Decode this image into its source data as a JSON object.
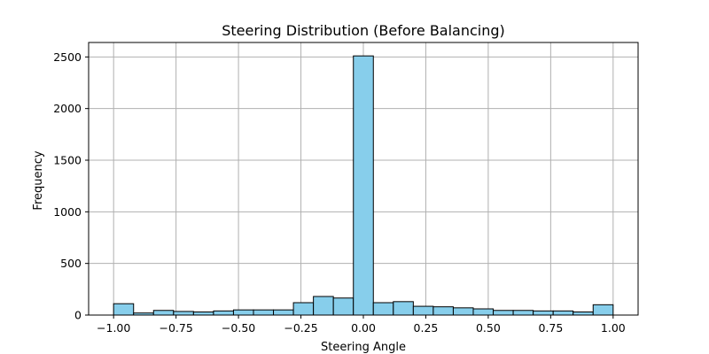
{
  "chart_data": {
    "type": "bar",
    "title": "Steering Distribution (Before Balancing)",
    "xlabel": "Steering Angle",
    "ylabel": "Frequency",
    "xlim": [
      -1.1,
      1.1
    ],
    "ylim": [
      0,
      2640
    ],
    "grid": true,
    "bar_color": "#87ceeb",
    "edge_color": "#000000",
    "grid_color": "#b0b0b0",
    "bin_edges": [
      -1.0,
      -0.92,
      -0.84,
      -0.76,
      -0.68,
      -0.6,
      -0.52,
      -0.44,
      -0.36,
      -0.28,
      -0.2,
      -0.12,
      -0.04,
      0.04,
      0.12,
      0.2,
      0.28,
      0.36,
      0.44,
      0.52,
      0.6,
      0.68,
      0.76,
      0.84,
      0.92,
      1.0
    ],
    "values": [
      110,
      20,
      45,
      35,
      30,
      40,
      50,
      50,
      50,
      120,
      180,
      165,
      2510,
      120,
      130,
      85,
      80,
      70,
      60,
      45,
      45,
      40,
      40,
      30,
      100
    ],
    "x_ticks": [
      {
        "value": -1.0,
        "label": "−1.00"
      },
      {
        "value": -0.75,
        "label": "−0.75"
      },
      {
        "value": -0.5,
        "label": "−0.50"
      },
      {
        "value": -0.25,
        "label": "−0.25"
      },
      {
        "value": 0.0,
        "label": "0.00"
      },
      {
        "value": 0.25,
        "label": "0.25"
      },
      {
        "value": 0.5,
        "label": "0.50"
      },
      {
        "value": 0.75,
        "label": "0.75"
      },
      {
        "value": 1.0,
        "label": "1.00"
      }
    ],
    "y_ticks": [
      {
        "value": 0,
        "label": "0"
      },
      {
        "value": 500,
        "label": "500"
      },
      {
        "value": 1000,
        "label": "1000"
      },
      {
        "value": 1500,
        "label": "1500"
      },
      {
        "value": 2000,
        "label": "2000"
      },
      {
        "value": 2500,
        "label": "2500"
      }
    ]
  }
}
